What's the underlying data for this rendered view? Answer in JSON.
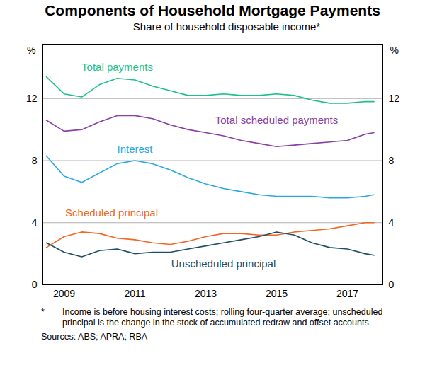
{
  "chart_data": {
    "type": "line",
    "title": "Components of Household Mortgage Payments",
    "subtitle": "Share of household disposable income*",
    "y_label": "%",
    "x": [
      2008.5,
      2009,
      2009.5,
      2010,
      2010.5,
      2011,
      2011.5,
      2012,
      2012.5,
      2013,
      2013.5,
      2014,
      2014.5,
      2015,
      2015.5,
      2016,
      2016.5,
      2017,
      2017.5,
      2017.75
    ],
    "series": [
      {
        "name": "Total payments",
        "color": "#1dbf8e",
        "values": [
          13.4,
          12.3,
          12.1,
          12.9,
          13.3,
          13.2,
          12.8,
          12.5,
          12.2,
          12.2,
          12.3,
          12.2,
          12.2,
          12.3,
          12.2,
          11.9,
          11.7,
          11.7,
          11.8,
          11.8
        ]
      },
      {
        "name": "Total scheduled payments",
        "color": "#8a3fa3",
        "values": [
          10.6,
          9.9,
          10.0,
          10.5,
          10.9,
          10.9,
          10.7,
          10.3,
          10.0,
          9.8,
          9.6,
          9.3,
          9.1,
          8.9,
          9.0,
          9.1,
          9.2,
          9.3,
          9.7,
          9.8
        ]
      },
      {
        "name": "Interest",
        "color": "#29a9e0",
        "values": [
          8.3,
          7.0,
          6.6,
          7.2,
          7.8,
          8.0,
          7.8,
          7.4,
          6.9,
          6.5,
          6.2,
          6.0,
          5.8,
          5.7,
          5.7,
          5.7,
          5.6,
          5.6,
          5.7,
          5.8
        ]
      },
      {
        "name": "Scheduled principal",
        "color": "#f26522",
        "values": [
          2.4,
          3.1,
          3.4,
          3.3,
          3.0,
          2.9,
          2.7,
          2.6,
          2.8,
          3.1,
          3.3,
          3.3,
          3.2,
          3.2,
          3.4,
          3.5,
          3.6,
          3.8,
          4.0,
          4.0
        ]
      },
      {
        "name": "Unscheduled principal",
        "color": "#1d4f66",
        "values": [
          2.7,
          2.1,
          1.8,
          2.2,
          2.3,
          2.0,
          2.1,
          2.1,
          2.3,
          2.5,
          2.7,
          2.9,
          3.1,
          3.4,
          3.2,
          2.7,
          2.4,
          2.3,
          2.0,
          1.9
        ]
      }
    ],
    "xlim": [
      2008.4,
      2018.0
    ],
    "xticks": [
      2009,
      2011,
      2013,
      2015,
      2017
    ],
    "ylim": [
      0,
      15.5
    ],
    "yticks": [
      0,
      4,
      8,
      12
    ],
    "grid": true,
    "footnote": {
      "marker": "*",
      "text": "Income is before housing interest costs; rolling four-quarter average; unscheduled principal is the change in the stock of accumulated redraw and offset accounts"
    },
    "source": "Sources:  ABS; APRA; RBA"
  }
}
